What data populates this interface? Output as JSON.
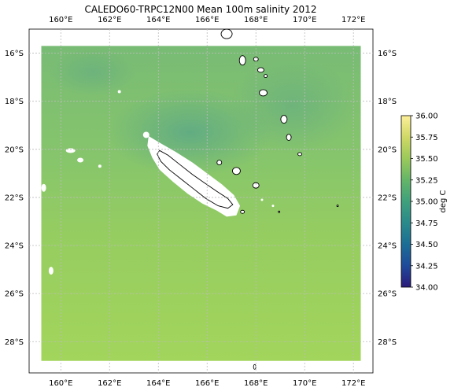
{
  "title": "CALEDO60-TRPC12N00 Mean 100m salinity 2012",
  "map": {
    "lon_range": [
      158.7,
      172.8
    ],
    "lat_range": [
      -29.3,
      -15.0
    ],
    "data_lon_range": [
      159.2,
      172.3
    ],
    "data_lat_range": [
      -28.8,
      -15.7
    ],
    "gridlines": true,
    "x_ticks": [
      {
        "value": 160,
        "label": "160°E"
      },
      {
        "value": 162,
        "label": "162°E"
      },
      {
        "value": 164,
        "label": "164°E"
      },
      {
        "value": 166,
        "label": "166°E"
      },
      {
        "value": 168,
        "label": "168°E"
      },
      {
        "value": 170,
        "label": "170°E"
      },
      {
        "value": 172,
        "label": "172°E"
      }
    ],
    "y_ticks": [
      {
        "value": -16,
        "label": "16°S"
      },
      {
        "value": -18,
        "label": "18°S"
      },
      {
        "value": -20,
        "label": "20°S"
      },
      {
        "value": -22,
        "label": "22°S"
      },
      {
        "value": -24,
        "label": "24°S"
      },
      {
        "value": -26,
        "label": "26°S"
      },
      {
        "value": -28,
        "label": "28°S"
      }
    ],
    "colors": {
      "field_high": "#a3d65a",
      "field_mid": "#86c76a",
      "field_low": "#6cb47c",
      "grid": "#bbbbbb",
      "land": "#ffffff",
      "coast": "#000000"
    }
  },
  "colorbar": {
    "label": "deg C",
    "range": [
      34.0,
      36.0
    ],
    "ticks": [
      "36.00",
      "35.75",
      "35.50",
      "35.25",
      "35.00",
      "34.75",
      "34.50",
      "34.25",
      "34.00"
    ],
    "colormap": "haline",
    "stops": [
      "#2b1b7a",
      "#1f4a9a",
      "#1c6e95",
      "#2a8a8a",
      "#3fa07c",
      "#64b568",
      "#9bc95a",
      "#cfd866",
      "#fdef9a"
    ]
  }
}
